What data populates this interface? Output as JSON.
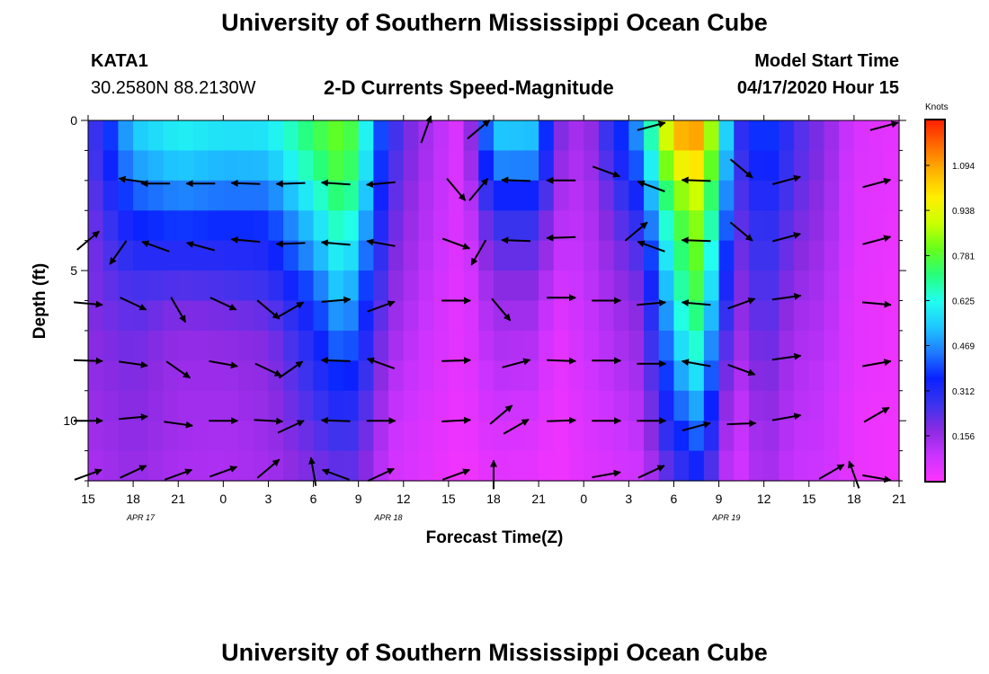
{
  "header": {
    "title": "University of Southern Mississippi Ocean Cube",
    "station": "KATA1",
    "coords": "30.2580N 88.2130W",
    "plot_title": "2-D Currents Speed-Magnitude",
    "model_label": "Model Start Time",
    "model_time": "04/17/2020 Hour 15"
  },
  "footer": {
    "title": "University of Southern Mississippi Ocean Cube"
  },
  "colors": {
    "scale": [
      "#ff33ff",
      "#cc33ff",
      "#8a2be2",
      "#3a33ee",
      "#0a22ff",
      "#1e7bff",
      "#1ec8ff",
      "#22ffee",
      "#26ff7a",
      "#66ff1a",
      "#ccff00",
      "#ffee00",
      "#ffb300",
      "#ff6a00",
      "#ff1e00"
    ]
  },
  "chart_data": {
    "type": "heatmap",
    "title": "2-D Currents Speed-Magnitude",
    "xlabel": "Forecast Time(Z)",
    "ylabel": "Depth (ft)",
    "x_ticks": [
      "15",
      "18",
      "21",
      "0",
      "3",
      "6",
      "9",
      "12",
      "15",
      "18",
      "21",
      "0",
      "3",
      "6",
      "9",
      "12",
      "15",
      "18",
      "21"
    ],
    "x_range_hours": [
      0,
      54
    ],
    "date_labels": [
      {
        "hour": 3.5,
        "text": "APR 17"
      },
      {
        "hour": 20,
        "text": "APR 18"
      },
      {
        "hour": 42.5,
        "text": "APR 19"
      }
    ],
    "y_ticks": [
      "0",
      "5",
      "10"
    ],
    "ylim": [
      0,
      12
    ],
    "y_reversed": true,
    "colorbar": {
      "unit": "Knots",
      "ticks": [
        "1.094",
        "0.938",
        "0.781",
        "0.625",
        "0.469",
        "0.312",
        "0.156"
      ],
      "tick_values": [
        1.094,
        0.938,
        0.781,
        0.625,
        0.469,
        0.312,
        0.156
      ],
      "range": [
        0,
        1.25
      ]
    },
    "depths_ft": [
      0,
      1,
      2,
      3,
      4,
      5,
      6,
      7,
      8,
      9,
      10,
      11,
      12
    ],
    "speed_profiles": [
      {
        "hour": 0,
        "values": [
          0.22,
          0.22,
          0.21,
          0.2,
          0.19,
          0.19,
          0.19,
          0.18,
          0.17,
          0.16,
          0.15,
          0.14,
          0.13
        ]
      },
      {
        "hour": 3,
        "values": [
          0.55,
          0.52,
          0.45,
          0.38,
          0.33,
          0.28,
          0.24,
          0.22,
          0.2,
          0.19,
          0.18,
          0.17,
          0.16
        ]
      },
      {
        "hour": 6,
        "values": [
          0.62,
          0.58,
          0.5,
          0.42,
          0.34,
          0.27,
          0.21,
          0.17,
          0.16,
          0.15,
          0.15,
          0.14,
          0.13
        ]
      },
      {
        "hour": 9,
        "values": [
          0.6,
          0.55,
          0.48,
          0.4,
          0.33,
          0.28,
          0.22,
          0.18,
          0.16,
          0.15,
          0.14,
          0.13,
          0.13
        ]
      },
      {
        "hour": 12,
        "values": [
          0.6,
          0.56,
          0.48,
          0.4,
          0.34,
          0.3,
          0.24,
          0.2,
          0.18,
          0.17,
          0.16,
          0.15,
          0.14
        ]
      },
      {
        "hour": 15,
        "values": [
          0.75,
          0.72,
          0.66,
          0.58,
          0.52,
          0.45,
          0.38,
          0.33,
          0.3,
          0.27,
          0.24,
          0.21,
          0.19
        ]
      },
      {
        "hour": 17,
        "values": [
          0.82,
          0.8,
          0.78,
          0.72,
          0.66,
          0.6,
          0.55,
          0.48,
          0.42,
          0.36,
          0.3,
          0.25,
          0.22
        ]
      },
      {
        "hour": 18,
        "values": [
          0.72,
          0.7,
          0.66,
          0.6,
          0.54,
          0.48,
          0.42,
          0.38,
          0.34,
          0.3,
          0.26,
          0.23,
          0.2
        ]
      },
      {
        "hour": 20,
        "values": [
          0.3,
          0.28,
          0.26,
          0.24,
          0.22,
          0.2,
          0.18,
          0.16,
          0.14,
          0.12,
          0.1,
          0.09,
          0.08
        ]
      },
      {
        "hour": 22,
        "values": [
          0.16,
          0.16,
          0.15,
          0.14,
          0.13,
          0.12,
          0.11,
          0.1,
          0.09,
          0.08,
          0.07,
          0.06,
          0.06
        ]
      },
      {
        "hour": 25,
        "values": [
          0.05,
          0.05,
          0.05,
          0.05,
          0.05,
          0.04,
          0.04,
          0.04,
          0.04,
          0.03,
          0.03,
          0.02,
          0.02
        ]
      },
      {
        "hour": 27,
        "values": [
          0.55,
          0.52,
          0.4,
          0.3,
          0.24,
          0.2,
          0.16,
          0.14,
          0.12,
          0.1,
          0.08,
          0.06,
          0.05
        ]
      },
      {
        "hour": 30,
        "values": [
          0.55,
          0.5,
          0.4,
          0.3,
          0.24,
          0.2,
          0.16,
          0.13,
          0.11,
          0.09,
          0.07,
          0.05,
          0.04
        ]
      },
      {
        "hour": 31,
        "values": [
          0.22,
          0.2,
          0.16,
          0.13,
          0.11,
          0.09,
          0.06,
          0.04,
          0.03,
          0.03,
          0.02,
          0.02,
          0.02
        ]
      },
      {
        "hour": 33,
        "values": [
          0.12,
          0.12,
          0.11,
          0.11,
          0.1,
          0.1,
          0.09,
          0.09,
          0.08,
          0.07,
          0.06,
          0.06,
          0.05
        ]
      },
      {
        "hour": 37,
        "values": [
          0.52,
          0.5,
          0.4,
          0.34,
          0.28,
          0.24,
          0.2,
          0.18,
          0.16,
          0.14,
          0.12,
          0.1,
          0.08
        ]
      },
      {
        "hour": 38,
        "values": [
          0.85,
          0.8,
          0.7,
          0.62,
          0.55,
          0.48,
          0.42,
          0.38,
          0.34,
          0.3,
          0.27,
          0.22,
          0.18
        ]
      },
      {
        "hour": 40,
        "values": [
          1.2,
          1.1,
          0.95,
          0.85,
          0.8,
          0.78,
          0.74,
          0.68,
          0.6,
          0.52,
          0.44,
          0.36,
          0.28
        ]
      },
      {
        "hour": 41,
        "values": [
          1.05,
          1.0,
          0.92,
          0.86,
          0.82,
          0.78,
          0.74,
          0.68,
          0.62,
          0.55,
          0.48,
          0.4,
          0.32
        ]
      },
      {
        "hour": 42,
        "values": [
          0.7,
          0.66,
          0.6,
          0.54,
          0.48,
          0.42,
          0.36,
          0.3,
          0.26,
          0.22,
          0.18,
          0.15,
          0.12
        ]
      },
      {
        "hour": 43.5,
        "values": [
          0.3,
          0.28,
          0.26,
          0.24,
          0.22,
          0.2,
          0.18,
          0.16,
          0.14,
          0.12,
          0.1,
          0.09,
          0.08
        ]
      },
      {
        "hour": 45,
        "values": [
          0.42,
          0.4,
          0.36,
          0.32,
          0.3,
          0.28,
          0.26,
          0.24,
          0.22,
          0.2,
          0.18,
          0.16,
          0.15
        ]
      },
      {
        "hour": 47,
        "values": [
          0.26,
          0.25,
          0.24,
          0.22,
          0.2,
          0.18,
          0.16,
          0.14,
          0.13,
          0.12,
          0.11,
          0.1,
          0.09
        ]
      },
      {
        "hour": 49,
        "values": [
          0.18,
          0.18,
          0.17,
          0.16,
          0.15,
          0.14,
          0.13,
          0.12,
          0.11,
          0.1,
          0.1,
          0.09,
          0.09
        ]
      },
      {
        "hour": 51,
        "values": [
          0.07,
          0.07,
          0.06,
          0.06,
          0.06,
          0.05,
          0.05,
          0.05,
          0.05,
          0.04,
          0.04,
          0.04,
          0.04
        ]
      },
      {
        "hour": 54,
        "values": [
          0.04,
          0.04,
          0.04,
          0.04,
          0.03,
          0.03,
          0.03,
          0.03,
          0.03,
          0.03,
          0.02,
          0.02,
          0.02
        ]
      }
    ],
    "vectors": [
      {
        "hour": 0,
        "depth": 4.0,
        "angle": 40
      },
      {
        "hour": 2,
        "depth": 4.4,
        "angle": 235
      },
      {
        "hour": 3,
        "depth": 2.0,
        "angle": 172
      },
      {
        "hour": 4.5,
        "depth": 2.1,
        "angle": 180
      },
      {
        "hour": 7.5,
        "depth": 2.1,
        "angle": 180
      },
      {
        "hour": 10.5,
        "depth": 2.1,
        "angle": 178
      },
      {
        "hour": 13.5,
        "depth": 2.1,
        "angle": 182
      },
      {
        "hour": 16.5,
        "depth": 2.1,
        "angle": 176
      },
      {
        "hour": 19.5,
        "depth": 2.1,
        "angle": 185
      },
      {
        "hour": 4.5,
        "depth": 4.2,
        "angle": 160
      },
      {
        "hour": 7.5,
        "depth": 4.2,
        "angle": 165
      },
      {
        "hour": 10.5,
        "depth": 4.0,
        "angle": 175
      },
      {
        "hour": 13.5,
        "depth": 4.1,
        "angle": 182
      },
      {
        "hour": 16.5,
        "depth": 4.1,
        "angle": 175
      },
      {
        "hour": 19.5,
        "depth": 4.1,
        "angle": 170
      },
      {
        "hour": 0,
        "depth": 6.1,
        "angle": -5
      },
      {
        "hour": 3,
        "depth": 6.1,
        "angle": -25
      },
      {
        "hour": 6,
        "depth": 6.3,
        "angle": -60
      },
      {
        "hour": 9,
        "depth": 6.1,
        "angle": -25
      },
      {
        "hour": 12,
        "depth": 6.3,
        "angle": -40
      },
      {
        "hour": 13.5,
        "depth": 6.3,
        "angle": 30
      },
      {
        "hour": 16.5,
        "depth": 6.0,
        "angle": 5
      },
      {
        "hour": 19.5,
        "depth": 6.2,
        "angle": 20
      },
      {
        "hour": 0,
        "depth": 8.0,
        "angle": -2
      },
      {
        "hour": 3,
        "depth": 8.1,
        "angle": -8
      },
      {
        "hour": 6,
        "depth": 8.3,
        "angle": -35
      },
      {
        "hour": 9,
        "depth": 8.1,
        "angle": -10
      },
      {
        "hour": 12,
        "depth": 8.3,
        "angle": -25
      },
      {
        "hour": 13.5,
        "depth": 8.3,
        "angle": 35
      },
      {
        "hour": 16.5,
        "depth": 8.0,
        "angle": 178
      },
      {
        "hour": 19.5,
        "depth": 8.1,
        "angle": 160
      },
      {
        "hour": 0,
        "depth": 10.0,
        "angle": 0
      },
      {
        "hour": 3,
        "depth": 9.9,
        "angle": 5
      },
      {
        "hour": 6,
        "depth": 10.1,
        "angle": -8
      },
      {
        "hour": 9,
        "depth": 10.0,
        "angle": 0
      },
      {
        "hour": 12,
        "depth": 10.0,
        "angle": -3
      },
      {
        "hour": 13.5,
        "depth": 10.2,
        "angle": 25
      },
      {
        "hour": 16.5,
        "depth": 10.0,
        "angle": 178
      },
      {
        "hour": 19.5,
        "depth": 10.0,
        "angle": 0
      },
      {
        "hour": 0,
        "depth": 11.8,
        "angle": 20
      },
      {
        "hour": 3,
        "depth": 11.7,
        "angle": 25
      },
      {
        "hour": 6,
        "depth": 11.8,
        "angle": 20
      },
      {
        "hour": 9,
        "depth": 11.7,
        "angle": 20
      },
      {
        "hour": 12,
        "depth": 11.6,
        "angle": 40
      },
      {
        "hour": 15,
        "depth": 11.7,
        "angle": 100
      },
      {
        "hour": 16.5,
        "depth": 11.8,
        "angle": 160
      },
      {
        "hour": 19.5,
        "depth": 11.8,
        "angle": 25
      },
      {
        "hour": 22.5,
        "depth": 0.3,
        "angle": 70
      },
      {
        "hour": 26,
        "depth": 0.3,
        "angle": 40
      },
      {
        "hour": 24.5,
        "depth": 2.3,
        "angle": -50
      },
      {
        "hour": 26,
        "depth": 2.3,
        "angle": 50
      },
      {
        "hour": 28.5,
        "depth": 2.0,
        "angle": 178
      },
      {
        "hour": 31.5,
        "depth": 2.0,
        "angle": 180
      },
      {
        "hour": 34.5,
        "depth": 1.7,
        "angle": -20
      },
      {
        "hour": 37.5,
        "depth": 2.2,
        "angle": 160
      },
      {
        "hour": 40.5,
        "depth": 2.0,
        "angle": 178
      },
      {
        "hour": 43.5,
        "depth": 1.6,
        "angle": -40
      },
      {
        "hour": 46.5,
        "depth": 2.0,
        "angle": 15
      },
      {
        "hour": 52.5,
        "depth": 2.1,
        "angle": 15
      },
      {
        "hour": 24.5,
        "depth": 4.1,
        "angle": -20
      },
      {
        "hour": 26,
        "depth": 4.4,
        "angle": 240
      },
      {
        "hour": 28.5,
        "depth": 4.0,
        "angle": 178
      },
      {
        "hour": 31.5,
        "depth": 3.9,
        "angle": 182
      },
      {
        "hour": 36.5,
        "depth": 3.7,
        "angle": 40
      },
      {
        "hour": 37.5,
        "depth": 4.2,
        "angle": 160
      },
      {
        "hour": 40.5,
        "depth": 4.0,
        "angle": 178
      },
      {
        "hour": 43.5,
        "depth": 3.7,
        "angle": -40
      },
      {
        "hour": 46.5,
        "depth": 3.9,
        "angle": 15
      },
      {
        "hour": 52.5,
        "depth": 4.0,
        "angle": 15
      },
      {
        "hour": 24.5,
        "depth": 6.0,
        "angle": 0
      },
      {
        "hour": 27.5,
        "depth": 6.3,
        "angle": -50
      },
      {
        "hour": 31.5,
        "depth": 5.9,
        "angle": 0
      },
      {
        "hour": 34.5,
        "depth": 6.0,
        "angle": 0
      },
      {
        "hour": 37.5,
        "depth": 6.1,
        "angle": 5
      },
      {
        "hour": 40.5,
        "depth": 6.1,
        "angle": 175
      },
      {
        "hour": 43.5,
        "depth": 6.1,
        "angle": 20
      },
      {
        "hour": 46.5,
        "depth": 5.9,
        "angle": 8
      },
      {
        "hour": 52.5,
        "depth": 6.1,
        "angle": -5
      },
      {
        "hour": 24.5,
        "depth": 8.0,
        "angle": 2
      },
      {
        "hour": 28.5,
        "depth": 8.1,
        "angle": 15
      },
      {
        "hour": 31.5,
        "depth": 8.0,
        "angle": -2
      },
      {
        "hour": 34.5,
        "depth": 8.0,
        "angle": 0
      },
      {
        "hour": 37.5,
        "depth": 8.1,
        "angle": 0
      },
      {
        "hour": 40.5,
        "depth": 8.1,
        "angle": 170
      },
      {
        "hour": 43.5,
        "depth": 8.3,
        "angle": -20
      },
      {
        "hour": 46.5,
        "depth": 7.9,
        "angle": 8
      },
      {
        "hour": 52.5,
        "depth": 8.1,
        "angle": 10
      },
      {
        "hour": 24.5,
        "depth": 10.0,
        "angle": 3
      },
      {
        "hour": 27.5,
        "depth": 9.8,
        "angle": 40
      },
      {
        "hour": 28.5,
        "depth": 10.2,
        "angle": 30
      },
      {
        "hour": 31.5,
        "depth": 10.0,
        "angle": 2
      },
      {
        "hour": 34.5,
        "depth": 10.0,
        "angle": 0
      },
      {
        "hour": 37.5,
        "depth": 10.0,
        "angle": 0
      },
      {
        "hour": 40.5,
        "depth": 10.2,
        "angle": 15
      },
      {
        "hour": 43.5,
        "depth": 10.1,
        "angle": 2
      },
      {
        "hour": 46.5,
        "depth": 9.9,
        "angle": 10
      },
      {
        "hour": 52.5,
        "depth": 9.8,
        "angle": 30
      },
      {
        "hour": 24.5,
        "depth": 11.8,
        "angle": 20
      },
      {
        "hour": 27,
        "depth": 11.8,
        "angle": 90
      },
      {
        "hour": 34.5,
        "depth": 11.8,
        "angle": 10
      },
      {
        "hour": 37.5,
        "depth": 11.7,
        "angle": 25
      },
      {
        "hour": 49.5,
        "depth": 11.7,
        "angle": 30
      },
      {
        "hour": 51,
        "depth": 11.8,
        "angle": 110
      },
      {
        "hour": 52.5,
        "depth": 11.9,
        "angle": -10
      },
      {
        "hour": 37.5,
        "depth": 0.2,
        "angle": 15
      },
      {
        "hour": 53,
        "depth": 0.2,
        "angle": 15
      }
    ]
  }
}
